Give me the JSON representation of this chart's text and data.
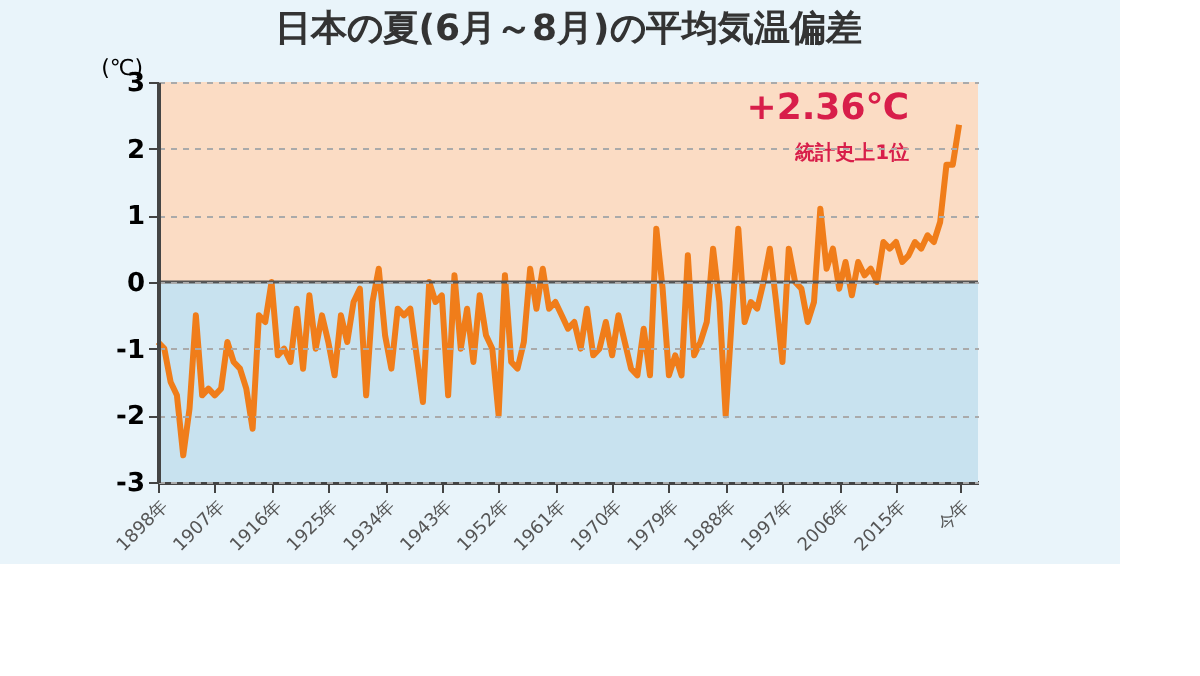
{
  "chart_data": {
    "type": "line",
    "title": "日本の夏(6月～8月)の平均気温偏差",
    "ylabel": "(℃)",
    "x": [
      1898,
      1899,
      1900,
      1901,
      1902,
      1903,
      1904,
      1905,
      1906,
      1907,
      1908,
      1909,
      1910,
      1911,
      1912,
      1913,
      1914,
      1915,
      1916,
      1917,
      1918,
      1919,
      1920,
      1921,
      1922,
      1923,
      1924,
      1925,
      1926,
      1927,
      1928,
      1929,
      1930,
      1931,
      1932,
      1933,
      1934,
      1935,
      1936,
      1937,
      1938,
      1939,
      1940,
      1941,
      1942,
      1943,
      1944,
      1945,
      1946,
      1947,
      1948,
      1949,
      1950,
      1951,
      1952,
      1953,
      1954,
      1955,
      1956,
      1957,
      1958,
      1959,
      1960,
      1961,
      1962,
      1963,
      1964,
      1965,
      1966,
      1967,
      1968,
      1969,
      1970,
      1971,
      1972,
      1973,
      1974,
      1975,
      1976,
      1977,
      1978,
      1979,
      1980,
      1981,
      1982,
      1983,
      1984,
      1985,
      1986,
      1987,
      1988,
      1989,
      1990,
      1991,
      1992,
      1993,
      1994,
      1995,
      1996,
      1997,
      1998,
      1999,
      2000,
      2001,
      2002,
      2003,
      2004,
      2005,
      2006,
      2007,
      2008,
      2009,
      2010,
      2011,
      2012,
      2013,
      2014,
      2015,
      2016,
      2017,
      2018,
      2019,
      2020,
      2021,
      2022,
      2023,
      2024,
      2025
    ],
    "series": [
      {
        "color": "#f07d1a",
        "values": [
          -0.9,
          -1.0,
          -1.5,
          -1.7,
          -2.6,
          -1.9,
          -0.5,
          -1.7,
          -1.6,
          -1.7,
          -1.6,
          -0.9,
          -1.2,
          -1.3,
          -1.6,
          -2.2,
          -0.5,
          -0.6,
          0.0,
          -1.1,
          -1.0,
          -1.2,
          -0.4,
          -1.3,
          -0.2,
          -1.0,
          -0.5,
          -0.9,
          -1.4,
          -0.5,
          -0.9,
          -0.3,
          -0.1,
          -1.7,
          -0.3,
          0.2,
          -0.8,
          -1.3,
          -0.4,
          -0.5,
          -0.4,
          -1.1,
          -1.8,
          0.0,
          -0.3,
          -0.2,
          -1.7,
          0.1,
          -1.0,
          -0.4,
          -1.2,
          -0.2,
          -0.8,
          -1.0,
          -2.0,
          0.1,
          -1.2,
          -1.3,
          -0.9,
          0.2,
          -0.4,
          0.2,
          -0.4,
          -0.3,
          -0.5,
          -0.7,
          -0.6,
          -1.0,
          -0.4,
          -1.1,
          -1.0,
          -0.6,
          -1.1,
          -0.5,
          -0.9,
          -1.3,
          -1.4,
          -0.7,
          -1.4,
          0.8,
          -0.1,
          -1.4,
          -1.1,
          -1.4,
          0.4,
          -1.1,
          -0.9,
          -0.6,
          0.5,
          -0.3,
          -2.0,
          -0.5,
          0.8,
          -0.6,
          -0.3,
          -0.4,
          0.0,
          0.5,
          -0.3,
          -1.2,
          0.5,
          0.0,
          -0.1,
          -0.6,
          -0.3,
          1.1,
          0.2,
          0.5,
          -0.1,
          0.3,
          -0.2,
          0.3,
          0.1,
          0.2,
          0.0,
          0.6,
          0.5,
          0.6,
          0.3,
          0.4,
          0.6,
          0.5,
          0.7,
          0.6,
          0.9,
          1.76,
          1.76,
          2.36
        ]
      }
    ],
    "xlim": [
      1898,
      2028
    ],
    "xticks": [
      {
        "value": 1898,
        "label": "1898年"
      },
      {
        "value": 1907,
        "label": "1907年"
      },
      {
        "value": 1916,
        "label": "1916年"
      },
      {
        "value": 1925,
        "label": "1925年"
      },
      {
        "value": 1934,
        "label": "1934年"
      },
      {
        "value": 1943,
        "label": "1943年"
      },
      {
        "value": 1952,
        "label": "1952年"
      },
      {
        "value": 1961,
        "label": "1961年"
      },
      {
        "value": 1970,
        "label": "1970年"
      },
      {
        "value": 1979,
        "label": "1979年"
      },
      {
        "value": 1988,
        "label": "1988年"
      },
      {
        "value": 1997,
        "label": "1997年"
      },
      {
        "value": 2006,
        "label": "2006年"
      },
      {
        "value": 2015,
        "label": "2015年"
      },
      {
        "value": 2025,
        "label": "今年"
      }
    ],
    "ylim": [
      -3,
      3
    ],
    "yticks": [
      -3,
      -2,
      -1,
      0,
      1,
      2,
      3
    ],
    "grid": "y",
    "marker": "none",
    "line_style": "solid",
    "ref_lines": [
      {
        "axis": "y",
        "value": 0,
        "color": "#555555"
      }
    ],
    "bands": [
      {
        "axis": "y",
        "from": 0,
        "to": 3,
        "color": "#fbdcc4"
      },
      {
        "axis": "y",
        "from": -3,
        "to": 0,
        "color": "#c8e2ef"
      }
    ],
    "annotations": [
      {
        "text": "+2.36℃",
        "x": 2025,
        "y": 2.36
      },
      {
        "text": "統計史上1位",
        "x": 2025,
        "y": 2.36
      }
    ]
  }
}
